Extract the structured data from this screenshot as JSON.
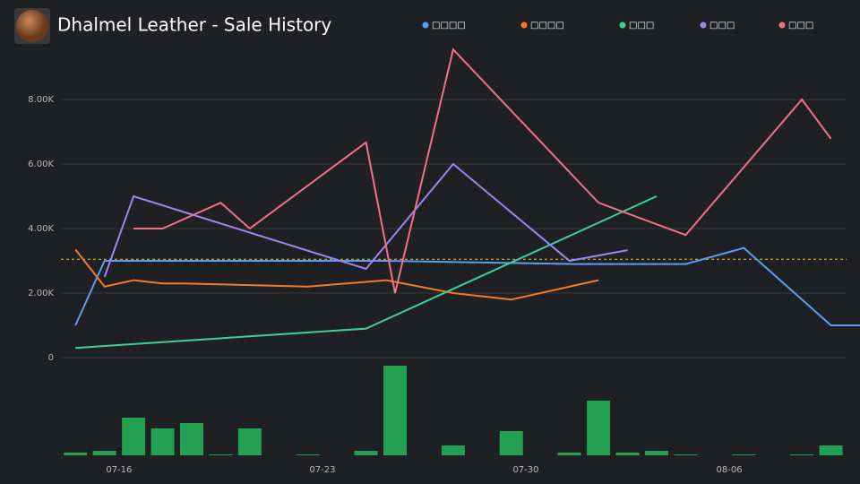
{
  "chart_data": [
    {
      "type": "line",
      "title": "Dhalmel Leather - Sale History",
      "xlim": [
        14,
        41.5
      ],
      "ylim": [
        0,
        9600
      ],
      "yticks": [
        0,
        {
          "value": 2000,
          "label": "2.00K"
        },
        {
          "value": 4000,
          "label": "4.00K"
        },
        {
          "value": 6000,
          "label": "6.00K"
        },
        {
          "value": 8000,
          "label": "8.00K"
        }
      ],
      "grid": true,
      "mean_line": {
        "value": 3050,
        "color": "#e8c22a"
      },
      "series": [
        {
          "name": "□□□□",
          "color": "#5b9cf0",
          "x": [
            14.5,
            15.5,
            20,
            25.2,
            31.6,
            35.5,
            37.5,
            40.5,
            41.5
          ],
          "values": [
            1000,
            3000,
            3000,
            3000,
            2900,
            2900,
            3400,
            1000,
            1000
          ]
        },
        {
          "name": "□□□□",
          "color": "#f07a2a",
          "x": [
            14.5,
            15.5,
            16.5,
            17.5,
            18.2,
            22.5,
            25.2,
            27.5,
            29.5,
            32.5
          ],
          "values": [
            3350,
            2200,
            2400,
            2300,
            2300,
            2200,
            2400,
            2000,
            1800,
            2400
          ]
        },
        {
          "name": "□□□",
          "color": "#3ecf94",
          "x": [
            14.5,
            24.5,
            34.5
          ],
          "values": [
            300,
            900,
            5000
          ]
        },
        {
          "name": "□□□",
          "color": "#9b86f0",
          "x": [
            15.5,
            16.5,
            24.5,
            27.5,
            31.5,
            33.5
          ],
          "values": [
            2500,
            5000,
            2750,
            6000,
            3000,
            3330
          ]
        },
        {
          "name": "□□□",
          "color": "#f07088",
          "x": [
            16.5,
            17.5,
            19.5,
            20.5,
            24.5,
            25.5,
            27.5,
            32.5,
            35.5,
            39.5,
            40.5
          ],
          "values": [
            4000,
            4000,
            4800,
            4000,
            6670,
            2000,
            9550,
            4800,
            3800,
            8000,
            6780
          ]
        }
      ]
    },
    {
      "type": "bar",
      "color": "#22a152",
      "xlim": [
        14,
        41.5
      ],
      "xticks": [
        {
          "value": 16,
          "label": "07-16"
        },
        {
          "value": 23,
          "label": "07-23"
        },
        {
          "value": 30,
          "label": "07-30"
        },
        {
          "value": 37,
          "label": "08-06"
        }
      ],
      "x": [
        14.5,
        15.5,
        16.5,
        17.5,
        18.5,
        19.5,
        20.5,
        22.5,
        24.5,
        25.5,
        27.5,
        29.5,
        31.5,
        32.5,
        33.5,
        34.5,
        35.5,
        37.5,
        39.5,
        40.5
      ],
      "values": [
        3,
        5,
        42,
        30,
        36,
        1,
        30,
        1,
        5,
        100,
        11,
        27,
        3,
        61,
        3,
        5,
        1,
        1,
        1,
        11
      ]
    }
  ]
}
